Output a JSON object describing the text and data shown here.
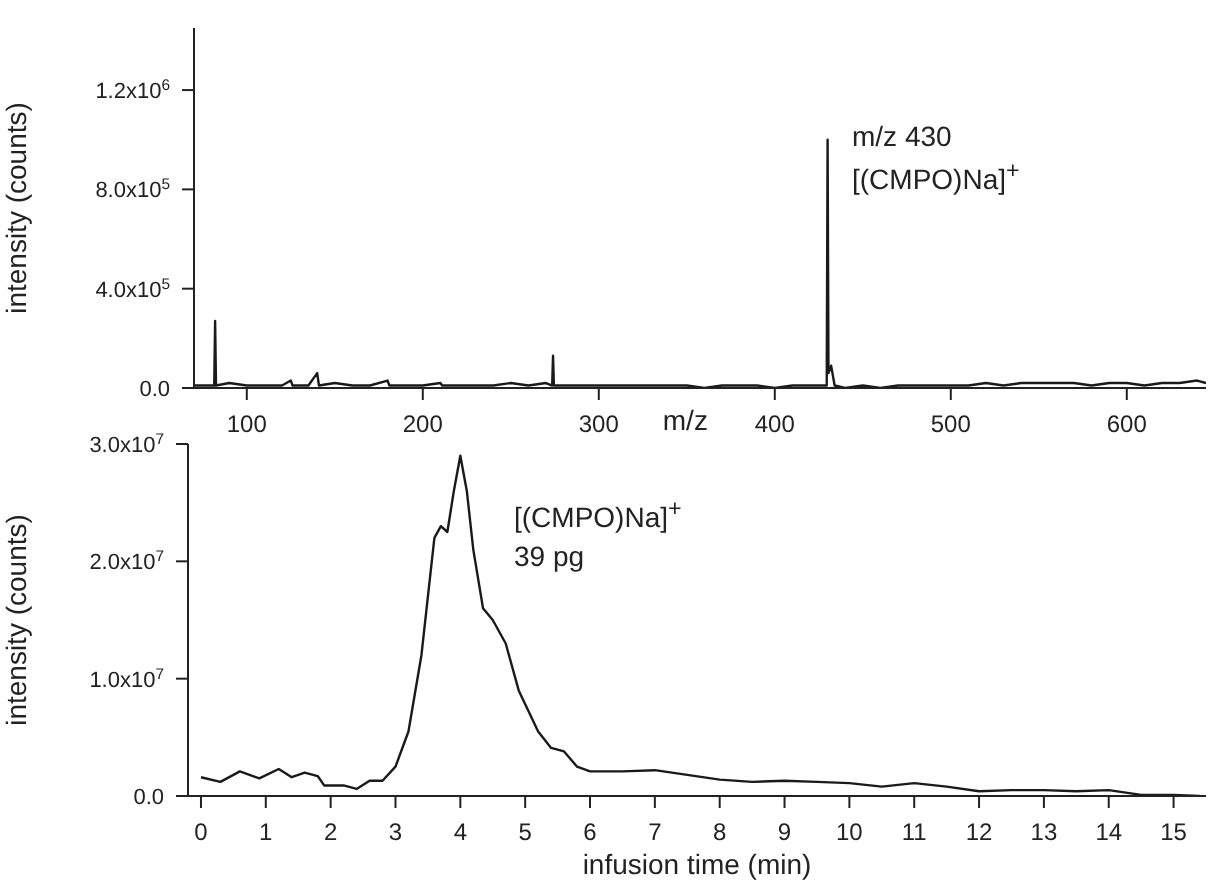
{
  "chart_data": [
    {
      "type": "line",
      "xlabel": "m/z",
      "ylabel": "intensity (counts)",
      "xlim": [
        70,
        645
      ],
      "ylim": [
        0,
        1450000
      ],
      "xticks": [
        100,
        200,
        300,
        400,
        500,
        600
      ],
      "yticks": [
        {
          "value": 0,
          "label": "0.0"
        },
        {
          "value": 400000,
          "label": "4.0x10$^{5}$"
        },
        {
          "value": 800000,
          "label": "8.0x10$^{5}$"
        },
        {
          "value": 1200000,
          "label": "1.2x10$^{6}$"
        }
      ],
      "annotations": [
        "m/z 430",
        "[(CMPO)Na]$^{+}$"
      ],
      "x": [
        70,
        80,
        81.5,
        82,
        82.5,
        90,
        100,
        110,
        120,
        125,
        126,
        135,
        140,
        141,
        150,
        160,
        170,
        180,
        181,
        190,
        200,
        210,
        211,
        220,
        230,
        240,
        250,
        260,
        270,
        273.5,
        274,
        274.5,
        280,
        290,
        300,
        310,
        320,
        330,
        340,
        350,
        360,
        370,
        380,
        390,
        400,
        410,
        420,
        429.5,
        430,
        430.5,
        432,
        434,
        440,
        450,
        460,
        470,
        480,
        490,
        500,
        510,
        520,
        530,
        540,
        550,
        560,
        570,
        580,
        590,
        600,
        610,
        620,
        630,
        640,
        645
      ],
      "series": [
        {
          "color": "#1a1a1a",
          "values": [
            10000,
            10000,
            10000,
            270000,
            10000,
            20000,
            10000,
            10000,
            10000,
            30000,
            10000,
            10000,
            60000,
            10000,
            20000,
            10000,
            10000,
            30000,
            10000,
            10000,
            10000,
            20000,
            10000,
            10000,
            10000,
            10000,
            20000,
            10000,
            20000,
            10000,
            130000,
            10000,
            10000,
            10000,
            10000,
            10000,
            10000,
            10000,
            10000,
            10000,
            0,
            10000,
            10000,
            10000,
            0,
            10000,
            10000,
            10000,
            1000000,
            60000,
            90000,
            10000,
            0,
            10000,
            0,
            10000,
            10000,
            10000,
            10000,
            10000,
            20000,
            10000,
            20000,
            20000,
            20000,
            20000,
            10000,
            20000,
            20000,
            10000,
            20000,
            20000,
            30000,
            20000
          ]
        }
      ]
    },
    {
      "type": "line",
      "xlabel": "infusion time (min)",
      "ylabel": "intensity (counts)",
      "xlim": [
        -0.2,
        15.5
      ],
      "ylim": [
        0,
        30000000
      ],
      "xticks": [
        0,
        1,
        2,
        3,
        4,
        5,
        6,
        7,
        8,
        9,
        10,
        11,
        12,
        13,
        14,
        15
      ],
      "yticks": [
        {
          "value": 0,
          "label": "0.0"
        },
        {
          "value": 10000000,
          "label": "1.0x10$^{7}$"
        },
        {
          "value": 20000000,
          "label": "2.0x10$^{7}$"
        },
        {
          "value": 30000000,
          "label": "3.0x10$^{7}$"
        }
      ],
      "annotations": [
        "[(CMPO)Na]$^{+}$",
        "39 pg"
      ],
      "x": [
        0,
        0.3,
        0.6,
        0.9,
        1.2,
        1.4,
        1.6,
        1.8,
        1.9,
        2.2,
        2.4,
        2.6,
        2.8,
        3.0,
        3.2,
        3.4,
        3.6,
        3.7,
        3.8,
        3.9,
        4.0,
        4.1,
        4.2,
        4.35,
        4.5,
        4.7,
        4.9,
        5.2,
        5.4,
        5.6,
        5.8,
        6.0,
        6.5,
        7.0,
        7.5,
        8.0,
        8.5,
        9.0,
        9.5,
        10.0,
        10.5,
        11.0,
        11.5,
        12.0,
        12.5,
        13.0,
        13.5,
        14.0,
        14.5,
        15.0,
        15.4
      ],
      "series": [
        {
          "color": "#1a1a1a",
          "values": [
            1600000,
            1200000,
            2100000,
            1500000,
            2300000,
            1600000,
            2000000,
            1700000,
            900000,
            900000,
            600000,
            1300000,
            1300000,
            2500000,
            5500000,
            12000000,
            22000000,
            23000000,
            22500000,
            26000000,
            29000000,
            26000000,
            21000000,
            16000000,
            15000000,
            13000000,
            9000000,
            5500000,
            4100000,
            3800000,
            2500000,
            2100000,
            2100000,
            2200000,
            1800000,
            1400000,
            1200000,
            1300000,
            1200000,
            1100000,
            800000,
            1100000,
            800000,
            400000,
            500000,
            500000,
            400000,
            500000,
            100000,
            100000,
            0
          ]
        }
      ]
    }
  ]
}
